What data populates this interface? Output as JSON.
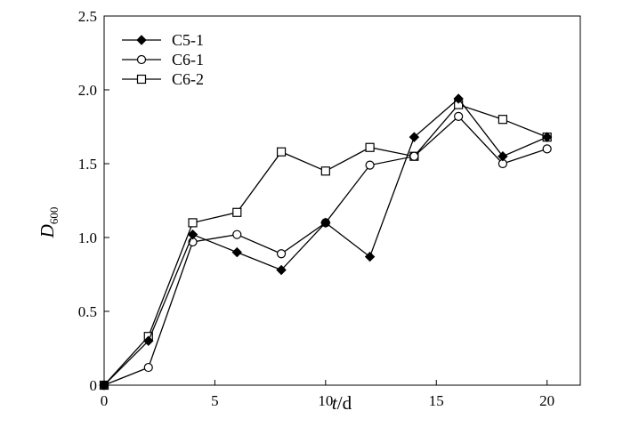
{
  "chart_data": {
    "type": "line",
    "title": "",
    "xlabel_italic": "t",
    "xlabel_unit": "/d",
    "ylabel_main": "D",
    "ylabel_sub": "600",
    "xlim": [
      0,
      21.5
    ],
    "ylim": [
      0,
      2.5
    ],
    "xticks": [
      0,
      5,
      10,
      15,
      20
    ],
    "xtick_labels": [
      "0",
      "5",
      "10",
      "15",
      "20"
    ],
    "yticks": [
      0,
      0.5,
      1.0,
      1.5,
      2.0,
      2.5
    ],
    "ytick_labels": [
      "0",
      "0.5",
      "1.0",
      "1.5",
      "2.0",
      "2.5"
    ],
    "grid": false,
    "legend_position": "top-left",
    "series": [
      {
        "name": "C5-1",
        "marker": "filled-diamond",
        "x": [
          0,
          2,
          4,
          6,
          8,
          10,
          12,
          14,
          16,
          18,
          20
        ],
        "y": [
          0,
          0.3,
          1.02,
          0.9,
          0.78,
          1.1,
          0.87,
          1.68,
          1.94,
          1.55,
          1.68
        ]
      },
      {
        "name": "C6-1",
        "marker": "open-circle",
        "x": [
          0,
          2,
          4,
          6,
          8,
          10,
          12,
          14,
          16,
          18,
          20
        ],
        "y": [
          0,
          0.12,
          0.97,
          1.02,
          0.89,
          1.1,
          1.49,
          1.55,
          1.82,
          1.5,
          1.6
        ]
      },
      {
        "name": "C6-2",
        "marker": "open-square",
        "x": [
          0,
          2,
          4,
          6,
          8,
          10,
          12,
          14,
          16,
          18,
          20
        ],
        "y": [
          0,
          0.33,
          1.1,
          1.17,
          1.58,
          1.45,
          1.61,
          1.55,
          1.9,
          1.8,
          1.68
        ]
      }
    ]
  }
}
